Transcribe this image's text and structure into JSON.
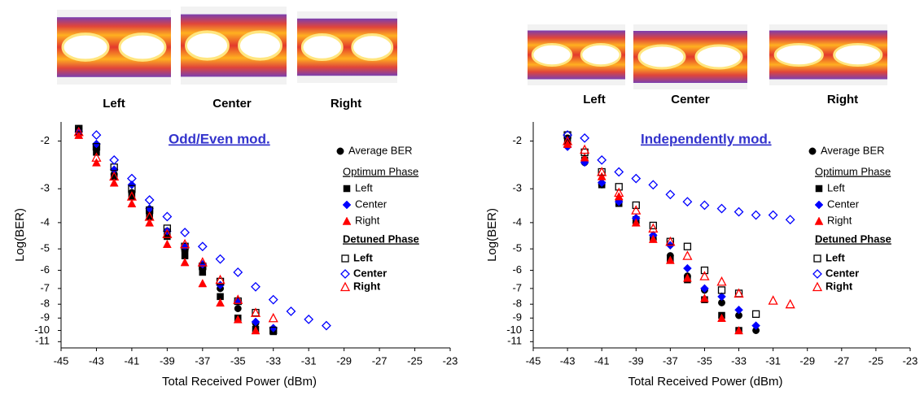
{
  "chart_data": [
    {
      "type": "scatter",
      "eye_labels": [
        "Left",
        "Center",
        "Right"
      ],
      "annotation": "Odd/Even mod.",
      "xlabel": "Total Received Power (dBm)",
      "ylabel": "Log(BER)",
      "xlim": [
        -45,
        -23
      ],
      "xticks": [
        -45,
        -43,
        -41,
        -39,
        -37,
        -35,
        -33,
        -31,
        -29,
        -27,
        -25,
        -23
      ],
      "ylim": [
        -11.6,
        -1.7
      ],
      "yticks": [
        -2,
        -3,
        -4,
        -5,
        -6,
        -7,
        -8,
        -9,
        -10,
        -11
      ],
      "yscale": "log",
      "optimum_heading": "Optimum Phase",
      "detuned_heading": "Detuned Phase",
      "series": [
        {
          "name": "Average BER",
          "marker": "circle",
          "filled": true,
          "color": "#000000",
          "x": [
            -44,
            -43,
            -42,
            -41,
            -40,
            -39,
            -38,
            -37,
            -36,
            -35,
            -34,
            -33
          ],
          "values": [
            -1.8,
            -2.1,
            -2.65,
            -3.1,
            -3.65,
            -4.3,
            -5.1,
            -5.9,
            -7.0,
            -8.3,
            -9.4,
            -9.9
          ]
        },
        {
          "name": "Left",
          "marker": "square",
          "filled": true,
          "color": "#000000",
          "x": [
            -44,
            -43,
            -42,
            -41,
            -40,
            -39,
            -38,
            -37,
            -36,
            -35,
            -34,
            -33
          ],
          "values": [
            -1.85,
            -2.2,
            -2.7,
            -3.2,
            -3.8,
            -4.5,
            -5.3,
            -6.1,
            -7.5,
            -9.0,
            -9.9,
            -10.1
          ]
        },
        {
          "name": "Center",
          "marker": "diamond",
          "filled": true,
          "color": "#0000ff",
          "x": [
            -44,
            -43,
            -42,
            -41,
            -40,
            -39,
            -38,
            -37,
            -36,
            -35,
            -34,
            -33
          ],
          "values": [
            -1.85,
            -2.05,
            -2.55,
            -2.9,
            -3.55,
            -4.3,
            -4.9,
            -5.7,
            -6.8,
            -7.8,
            -9.3,
            -9.8
          ]
        },
        {
          "name": "Right",
          "marker": "triangle",
          "filled": true,
          "color": "#ff0000",
          "x": [
            -44,
            -43,
            -42,
            -41,
            -40,
            -39,
            -38,
            -37,
            -36,
            -35,
            -34
          ],
          "values": [
            -1.9,
            -2.4,
            -2.85,
            -3.4,
            -4.0,
            -4.8,
            -5.6,
            -6.7,
            -7.9,
            -9.1,
            -10.0
          ]
        },
        {
          "name": "Left",
          "marker": "square",
          "filled": false,
          "color": "#000000",
          "x": [
            -44,
            -43,
            -42,
            -41,
            -40,
            -39,
            -38,
            -37,
            -36,
            -35,
            -34,
            -33
          ],
          "values": [
            -1.8,
            -2.1,
            -2.5,
            -3.0,
            -3.6,
            -4.2,
            -4.9,
            -5.8,
            -6.6,
            -7.8,
            -8.6,
            -10.0
          ]
        },
        {
          "name": "Center",
          "marker": "diamond",
          "filled": false,
          "color": "#0000ff",
          "x": [
            -43,
            -42,
            -41,
            -40,
            -39,
            -38,
            -37,
            -36,
            -35,
            -34,
            -33,
            -32,
            -31,
            -30
          ],
          "values": [
            -1.9,
            -2.35,
            -2.75,
            -3.3,
            -3.8,
            -4.35,
            -4.9,
            -5.45,
            -6.1,
            -6.9,
            -7.7,
            -8.5,
            -9.1,
            -9.6
          ]
        },
        {
          "name": "Right",
          "marker": "triangle",
          "filled": false,
          "color": "#ff0000",
          "x": [
            -44,
            -43,
            -42,
            -41,
            -40,
            -39,
            -38,
            -37,
            -36,
            -35,
            -34,
            -33
          ],
          "values": [
            -1.85,
            -2.3,
            -2.7,
            -3.2,
            -3.8,
            -4.4,
            -4.8,
            -5.6,
            -6.5,
            -7.7,
            -8.6,
            -9.0
          ]
        }
      ]
    },
    {
      "type": "scatter",
      "eye_labels": [
        "Left",
        "Center",
        "Right"
      ],
      "annotation": "Independently mod.",
      "xlabel": "Total Received Power (dBm)",
      "ylabel": "Log(BER)",
      "xlim": [
        -45,
        -23
      ],
      "xticks": [
        -45,
        -43,
        -41,
        -39,
        -37,
        -35,
        -33,
        -31,
        -29,
        -27,
        -25,
        -23
      ],
      "ylim": [
        -11.6,
        -1.7
      ],
      "yticks": [
        -2,
        -3,
        -4,
        -5,
        -6,
        -7,
        -8,
        -9,
        -10,
        -11
      ],
      "yscale": "log",
      "optimum_heading": "Optimum Phase",
      "detuned_heading": "Detuned Phase",
      "series": [
        {
          "name": "Average BER",
          "marker": "circle",
          "filled": true,
          "color": "#000000",
          "x": [
            -43,
            -42,
            -41,
            -40,
            -39,
            -38,
            -37,
            -36,
            -35,
            -34,
            -33,
            -32
          ],
          "values": [
            -1.95,
            -2.4,
            -2.9,
            -3.3,
            -4.0,
            -4.6,
            -5.3,
            -6.3,
            -7.1,
            -7.9,
            -8.8,
            -10.0
          ]
        },
        {
          "name": "Left",
          "marker": "square",
          "filled": true,
          "color": "#000000",
          "x": [
            -43,
            -42,
            -41,
            -40,
            -39,
            -38,
            -37,
            -36,
            -35,
            -34,
            -33
          ],
          "values": [
            -2.0,
            -2.35,
            -2.9,
            -3.4,
            -3.9,
            -4.6,
            -5.5,
            -6.5,
            -7.7,
            -8.8,
            -10.0
          ]
        },
        {
          "name": "Center",
          "marker": "diamond",
          "filled": true,
          "color": "#0000ff",
          "x": [
            -43,
            -42,
            -41,
            -40,
            -39,
            -38,
            -37,
            -36,
            -35,
            -34,
            -33,
            -32
          ],
          "values": [
            -2.1,
            -2.4,
            -2.85,
            -3.35,
            -3.85,
            -4.45,
            -4.85,
            -5.9,
            -7.0,
            -7.5,
            -8.4,
            -9.6
          ]
        },
        {
          "name": "Right",
          "marker": "triangle",
          "filled": true,
          "color": "#ff0000",
          "x": [
            -43,
            -42,
            -41,
            -40,
            -39,
            -38,
            -37,
            -36,
            -35,
            -34,
            -33
          ],
          "values": [
            -2.05,
            -2.3,
            -2.7,
            -3.2,
            -4.0,
            -4.6,
            -5.5,
            -6.4,
            -7.6,
            -9.0,
            -10.0
          ]
        },
        {
          "name": "Left",
          "marker": "square",
          "filled": false,
          "color": "#000000",
          "x": [
            -43,
            -42,
            -41,
            -40,
            -39,
            -38,
            -37,
            -36,
            -35,
            -34,
            -33,
            -32
          ],
          "values": [
            -1.9,
            -2.2,
            -2.6,
            -2.95,
            -3.45,
            -4.1,
            -4.7,
            -4.9,
            -6.0,
            -7.1,
            -7.3,
            -8.7
          ]
        },
        {
          "name": "Center",
          "marker": "diamond",
          "filled": false,
          "color": "#0000ff",
          "x": [
            -43,
            -42,
            -41,
            -40,
            -39,
            -38,
            -37,
            -36,
            -35,
            -34,
            -33,
            -32,
            -31,
            -30
          ],
          "values": [
            -1.9,
            -1.95,
            -2.35,
            -2.6,
            -2.75,
            -2.9,
            -3.15,
            -3.35,
            -3.45,
            -3.55,
            -3.65,
            -3.75,
            -3.75,
            -3.9
          ]
        },
        {
          "name": "Right",
          "marker": "triangle",
          "filled": false,
          "color": "#ff0000",
          "x": [
            -43,
            -42,
            -41,
            -40,
            -39,
            -38,
            -37,
            -36,
            -35,
            -34,
            -33,
            -31,
            -30
          ],
          "values": [
            -2.0,
            -2.15,
            -2.6,
            -3.1,
            -3.6,
            -4.2,
            -4.7,
            -5.3,
            -6.3,
            -6.6,
            -7.3,
            -7.75,
            -8.0
          ]
        }
      ]
    }
  ]
}
